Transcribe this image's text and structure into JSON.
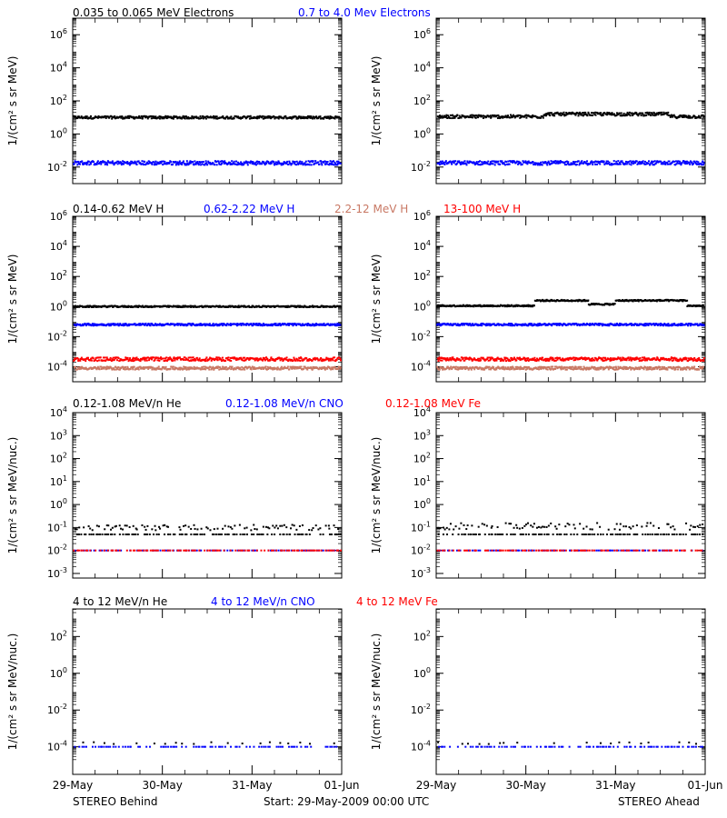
{
  "colors": {
    "black": "#000000",
    "blue": "#0000ff",
    "tan": "#c87864",
    "red": "#ff0000",
    "axis": "#000000"
  },
  "labels": {
    "electrons_low": "0.035 to 0.065 MeV Electrons",
    "electrons_high": "0.7 to 4.0 Mev Electrons",
    "h1": "0.14-0.62 MeV H",
    "h2": "0.62-2.22 MeV H",
    "h3": "2.2-12 MeV H",
    "h4": "13-100 MeV H",
    "he_low": "0.12-1.08 MeV/n He",
    "cno_low": "0.12-1.08 MeV/n CNO",
    "fe_low": "0.12-1.08 MeV Fe",
    "he_high": "4 to 12 MeV/n He",
    "cno_high": "4 to 12 MeV/n CNO",
    "fe_high": "4 to 12 MeV Fe",
    "ylabel_mev": "1/(cm² s sr MeV)",
    "ylabel_nuc": "1/(cm² s sr MeV/nuc.)",
    "footer_left": "STEREO Behind",
    "footer_center": "Start: 29-May-2009 00:00 UTC",
    "footer_right": "STEREO Ahead"
  },
  "chart_data": {
    "type": "scatter",
    "x_ticks": [
      "29-May",
      "30-May",
      "31-May",
      "01-Jun"
    ],
    "x_range": [
      0,
      3
    ],
    "log_y": true,
    "panels": [
      {
        "row": 0,
        "col": 0,
        "ylabel": "1/(cm² s sr MeV)",
        "ylim_exp": [
          -3,
          7
        ],
        "yticks": [
          "10^-2",
          "10^0",
          "10^2",
          "10^4",
          "10^6"
        ],
        "series": [
          {
            "color": "black",
            "level_exp": 1.0,
            "jitter": 0.08
          },
          {
            "color": "blue",
            "level_exp": -1.75,
            "jitter": 0.12
          }
        ]
      },
      {
        "row": 0,
        "col": 1,
        "ylabel": "1/(cm² s sr MeV)",
        "ylim_exp": [
          -3,
          7
        ],
        "yticks": [
          "10^-2",
          "10^0",
          "10^2",
          "10^4",
          "10^6"
        ],
        "series": [
          {
            "color": "black",
            "level_exp": 1.05,
            "jitter": 0.1,
            "bump": 0.15
          },
          {
            "color": "blue",
            "level_exp": -1.75,
            "jitter": 0.12
          }
        ]
      },
      {
        "row": 1,
        "col": 0,
        "ylabel": "1/(cm² s sr MeV)",
        "ylim_exp": [
          -5,
          6
        ],
        "yticks": [
          "10^-4",
          "10^-2",
          "10^0",
          "10^2",
          "10^4",
          "10^6"
        ],
        "series": [
          {
            "color": "black",
            "level_exp": 0.0,
            "jitter": 0.05
          },
          {
            "color": "blue",
            "level_exp": -1.2,
            "jitter": 0.07
          },
          {
            "color": "tan",
            "level_exp": -4.1,
            "jitter": 0.1
          },
          {
            "color": "red",
            "level_exp": -3.5,
            "jitter": 0.12
          }
        ]
      },
      {
        "row": 1,
        "col": 1,
        "ylabel": "1/(cm² s sr MeV)",
        "ylim_exp": [
          -5,
          6
        ],
        "yticks": [
          "10^-4",
          "10^-2",
          "10^0",
          "10^2",
          "10^4",
          "10^6"
        ],
        "series": [
          {
            "color": "black",
            "level_exp": 0.05,
            "jitter": 0.05,
            "step": true
          },
          {
            "color": "blue",
            "level_exp": -1.2,
            "jitter": 0.07
          },
          {
            "color": "tan",
            "level_exp": -4.1,
            "jitter": 0.1
          },
          {
            "color": "red",
            "level_exp": -3.5,
            "jitter": 0.12
          }
        ]
      },
      {
        "row": 2,
        "col": 0,
        "ylabel": "1/(cm² s sr MeV/nuc.)",
        "ylim_exp": [
          -3.2,
          4
        ],
        "yticks": [
          "10^-3",
          "10^-2",
          "10^-1",
          "10^0",
          "10^1",
          "10^2",
          "10^3",
          "10^4"
        ],
        "series": [
          {
            "color": "black",
            "level_exp": -1.3,
            "jitter": 0.0,
            "sparse": true
          },
          {
            "color": "black",
            "level_exp": -1.0,
            "jitter": 0.12,
            "sparse": true
          },
          {
            "color": "blue",
            "level_exp": -2.0,
            "jitter": 0.0,
            "sparse": true
          },
          {
            "color": "red",
            "level_exp": -2.0,
            "jitter": 0.0,
            "sparse": true
          }
        ]
      },
      {
        "row": 2,
        "col": 1,
        "ylabel": "1/(cm² s sr MeV/nuc.)",
        "ylim_exp": [
          -3.2,
          4
        ],
        "yticks": [
          "10^-3",
          "10^-2",
          "10^-1",
          "10^0",
          "10^1",
          "10^2",
          "10^3",
          "10^4"
        ],
        "series": [
          {
            "color": "black",
            "level_exp": -1.3,
            "jitter": 0.0,
            "sparse": true
          },
          {
            "color": "black",
            "level_exp": -0.95,
            "jitter": 0.15,
            "sparse": true
          },
          {
            "color": "blue",
            "level_exp": -2.0,
            "jitter": 0.0,
            "sparse": true
          },
          {
            "color": "red",
            "level_exp": -2.0,
            "jitter": 0.0,
            "sparse": true
          }
        ]
      },
      {
        "row": 3,
        "col": 0,
        "ylabel": "1/(cm² s sr MeV/nuc.)",
        "ylim_exp": [
          -5.5,
          3.5
        ],
        "yticks": [
          "10^-4",
          "10^-2",
          "10^0",
          "10^2"
        ],
        "series": [
          {
            "color": "blue",
            "level_exp": -4.0,
            "jitter": 0.0,
            "sparse": true
          },
          {
            "color": "black",
            "level_exp": -3.8,
            "jitter": 0.05,
            "sparse": true,
            "few": true
          }
        ]
      },
      {
        "row": 3,
        "col": 1,
        "ylabel": "1/(cm² s sr MeV/nuc.)",
        "ylim_exp": [
          -5.5,
          3.5
        ],
        "yticks": [
          "10^-4",
          "10^-2",
          "10^0",
          "10^2"
        ],
        "series": [
          {
            "color": "blue",
            "level_exp": -4.0,
            "jitter": 0.0,
            "sparse": true
          },
          {
            "color": "black",
            "level_exp": -3.8,
            "jitter": 0.05,
            "sparse": true,
            "few": true
          }
        ]
      }
    ]
  }
}
